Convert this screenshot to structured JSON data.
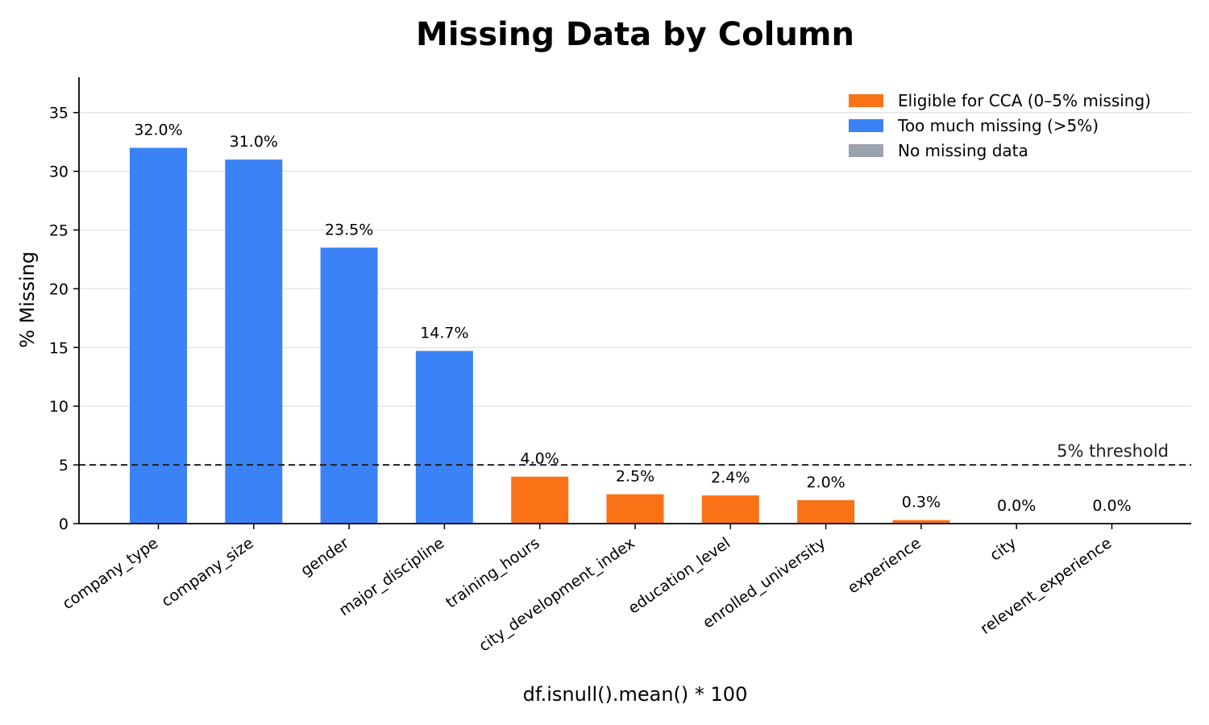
{
  "chart_data": {
    "type": "bar",
    "title": "Missing Data by Column",
    "xlabel": "df.isnull().mean() * 100",
    "ylabel": "% Missing",
    "ylim": [
      0,
      38
    ],
    "yticks": [
      0,
      5,
      10,
      15,
      20,
      25,
      30,
      35
    ],
    "grid": "horizontal",
    "legend_position": "top-right",
    "categories": [
      "company_type",
      "company_size",
      "gender",
      "major_discipline",
      "training_hours",
      "city_development_index",
      "education_level",
      "enrolled_university",
      "experience",
      "city",
      "relevent_experience"
    ],
    "values": [
      32.0,
      31.0,
      23.5,
      14.7,
      4.0,
      2.5,
      2.4,
      2.0,
      0.3,
      0.0,
      0.0
    ],
    "value_labels": [
      "32.0%",
      "31.0%",
      "23.5%",
      "14.7%",
      "4.0%",
      "2.5%",
      "2.4%",
      "2.0%",
      "0.3%",
      "0.0%",
      "0.0%"
    ],
    "groups": [
      "high",
      "high",
      "high",
      "high",
      "eligible",
      "eligible",
      "eligible",
      "eligible",
      "eligible",
      "none",
      "none"
    ],
    "threshold": {
      "value": 5,
      "label": "5% threshold"
    },
    "legend": [
      {
        "key": "eligible",
        "label": "Eligible for CCA (0–5% missing)",
        "color": "#f97316"
      },
      {
        "key": "high",
        "label": "Too much missing (>5%)",
        "color": "#3b82f6"
      },
      {
        "key": "none",
        "label": "No missing data",
        "color": "#9ca3af"
      }
    ]
  }
}
